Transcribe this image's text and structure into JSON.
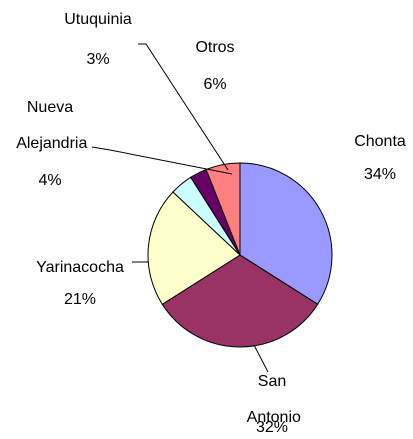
{
  "chart_data": {
    "type": "pie",
    "categories": [
      "Chonta",
      "San Antonio",
      "Yarinacocha",
      "Nueva Alejandria",
      "Utuquinia",
      "Otros"
    ],
    "values": [
      34,
      32,
      21,
      4,
      3,
      6
    ],
    "value_labels": [
      "34%",
      "32%",
      "21%",
      "4%",
      "3%",
      "6%"
    ],
    "colors": [
      "#9999ff",
      "#993366",
      "#ffffcc",
      "#ccffff",
      "#660066",
      "#ff8080"
    ]
  }
}
